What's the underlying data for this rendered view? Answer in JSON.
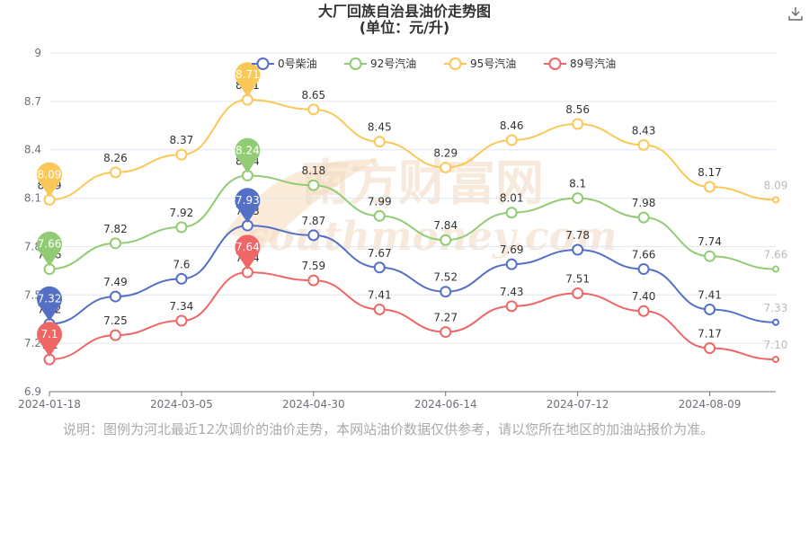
{
  "page": {
    "title": "大厂回族自治县油价走势图",
    "subtitle": "(单位：元/升)",
    "download_icon": "download-icon",
    "note": "说明：图例为河北最近12次调价的油价走势，本网站油价数据仅供参考，请以您所在地区的加油站报价为准。",
    "watermark": "南方财富网 southmoney.com"
  },
  "chart_data": {
    "type": "line",
    "title": "大厂回族自治县油价走势图",
    "subtitle": "(单位：元/升)",
    "x_tick_labels": [
      "2024-01-18",
      "2024-03-05",
      "2024-04-30",
      "2024-06-14",
      "2024-07-12",
      "2024-08-09"
    ],
    "x_tick_indices": [
      0,
      2,
      4,
      6,
      8,
      10
    ],
    "ylim": [
      6.9,
      9
    ],
    "y_ticks": [
      6.9,
      7.2,
      7.5,
      7.8,
      8.1,
      8.4,
      8.7,
      9
    ],
    "grid": "horizontal",
    "legend_position": "top-center",
    "series": [
      {
        "name": "0号柴油",
        "color": "#5470c6",
        "values": [
          7.32,
          7.49,
          7.6,
          7.93,
          7.87,
          7.67,
          7.52,
          7.69,
          7.78,
          7.66,
          7.41,
          7.33
        ],
        "labels": [
          "7.32",
          "7.49",
          "7.6",
          "7.93",
          "7.87",
          "7.67",
          "7.52",
          "7.69",
          "7.78",
          "7.66",
          "7.41",
          "7.33"
        ],
        "min_marker": "7.32",
        "max_marker": "7.93"
      },
      {
        "name": "92号汽油",
        "color": "#91cc75",
        "values": [
          7.66,
          7.82,
          7.92,
          8.24,
          8.18,
          7.99,
          7.84,
          8.01,
          8.1,
          7.98,
          7.74,
          7.66
        ],
        "labels": [
          "7.66",
          "7.82",
          "7.92",
          "8.24",
          "8.18",
          "7.99",
          "7.84",
          "8.01",
          "8.1",
          "7.98",
          "7.74",
          "7.66"
        ],
        "min_marker": "7.66",
        "max_marker": "8.24"
      },
      {
        "name": "95号汽油",
        "color": "#fac858",
        "values": [
          8.09,
          8.26,
          8.37,
          8.71,
          8.65,
          8.45,
          8.29,
          8.46,
          8.56,
          8.43,
          8.17,
          8.09
        ],
        "labels": [
          "8.09",
          "8.26",
          "8.37",
          "8.71",
          "8.65",
          "8.45",
          "8.29",
          "8.46",
          "8.56",
          "8.43",
          "8.17",
          "8.09"
        ],
        "min_marker": "8.09",
        "max_marker": "8.71"
      },
      {
        "name": "89号汽油",
        "color": "#ee6666",
        "values": [
          7.1,
          7.25,
          7.34,
          7.64,
          7.59,
          7.41,
          7.27,
          7.43,
          7.51,
          7.4,
          7.17,
          7.1
        ],
        "labels": [
          "7.1",
          "7.25",
          "7.34",
          "7.64",
          "7.59",
          "7.41",
          "7.27",
          "7.43",
          "7.51",
          "7.40",
          "7.17",
          "7.10"
        ],
        "min_marker": "7.1",
        "max_marker": "7.64"
      }
    ]
  }
}
